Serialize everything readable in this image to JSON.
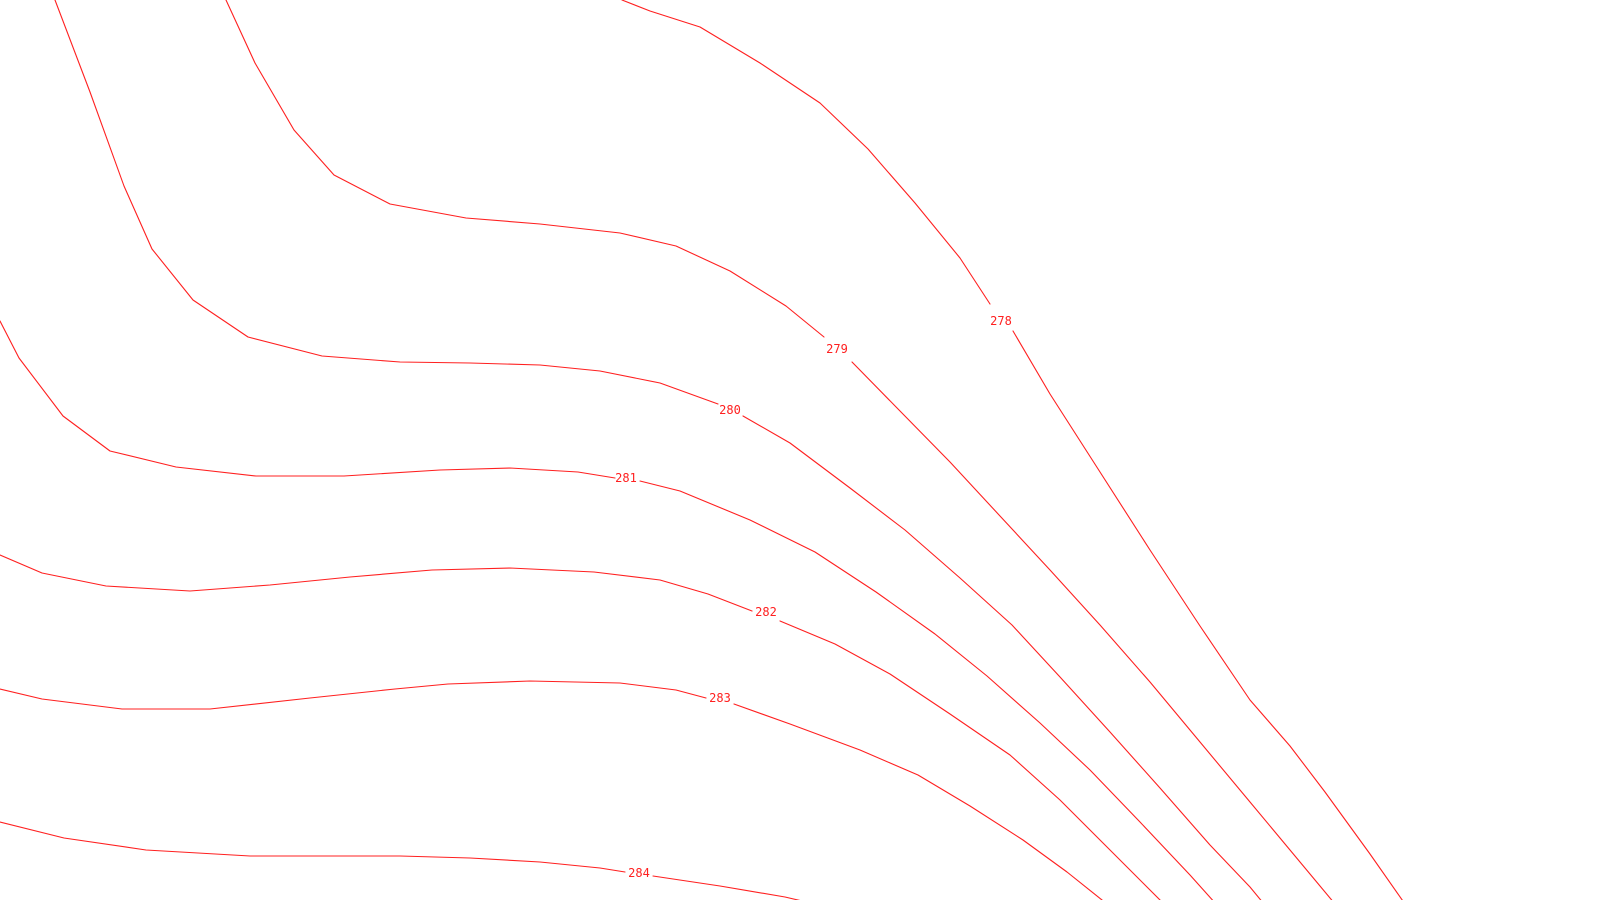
{
  "map": {
    "contour_color": "#ff2020",
    "background_color": "#ffffff",
    "contours": [
      {
        "level": 278,
        "label": "278"
      },
      {
        "level": 279,
        "label": "279"
      },
      {
        "level": 280,
        "label": "280"
      },
      {
        "level": 281,
        "label": "281"
      },
      {
        "level": 282,
        "label": "282"
      },
      {
        "level": 283,
        "label": "283"
      },
      {
        "level": 284,
        "label": "284"
      }
    ]
  }
}
